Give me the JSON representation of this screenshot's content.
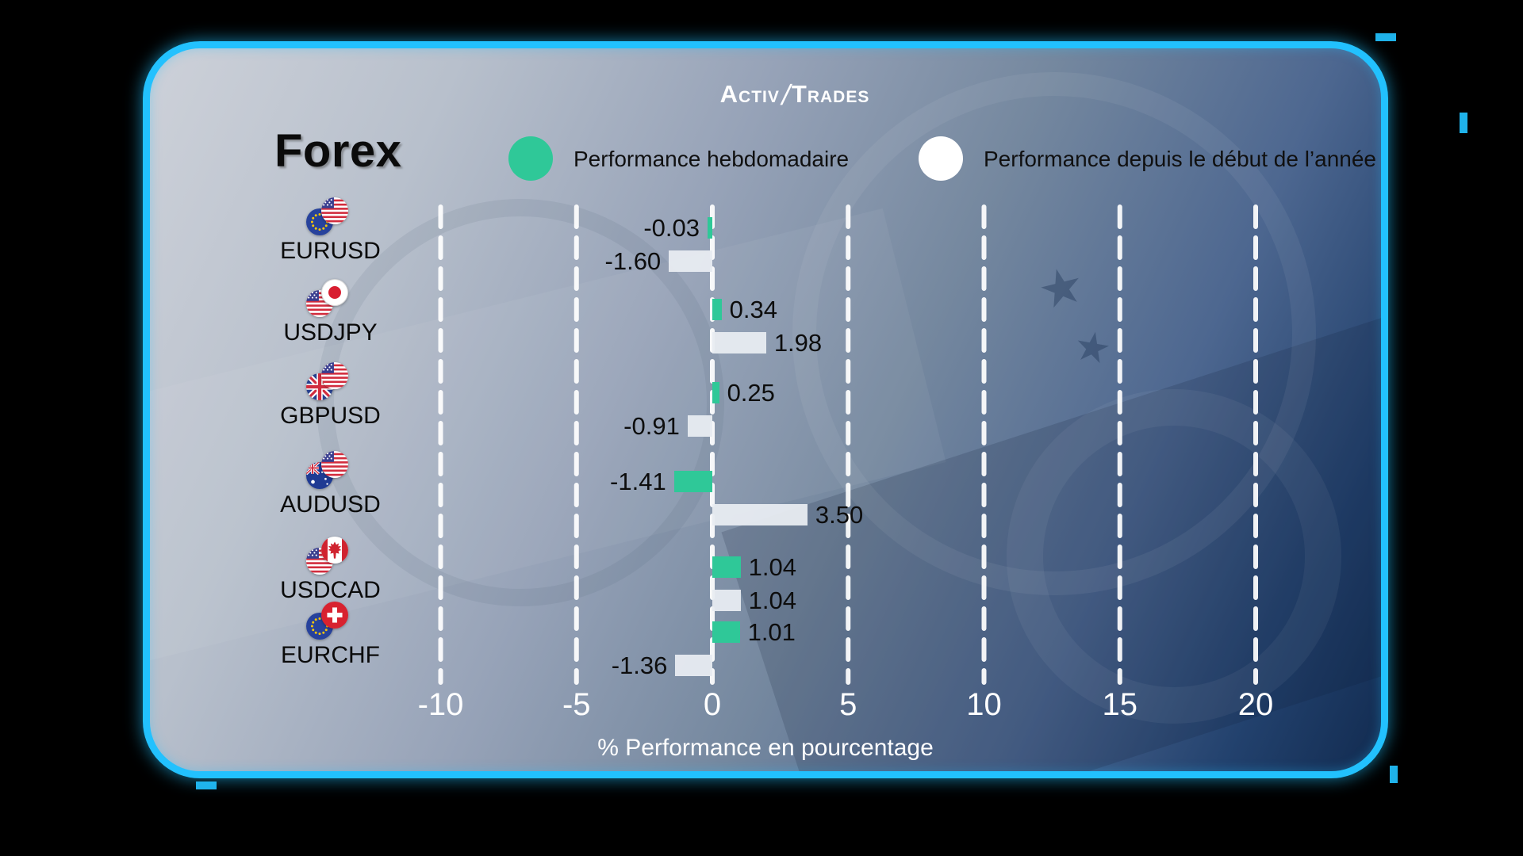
{
  "brand": {
    "logo_part1": "Activ",
    "logo_separator": "/",
    "logo_part2": "Trades"
  },
  "header": {
    "title": "Forex"
  },
  "legend": [
    {
      "label": "Performance hebdomadaire",
      "color": "#2fc898"
    },
    {
      "label": "Performance depuis le début de l’année",
      "color": "#ffffff"
    }
  ],
  "colors": {
    "weekly_bar": "#2fc898",
    "ytd_bar": "#e8ecf1",
    "frame": "#22c1fe",
    "grid": "#ffffff",
    "tick_text": "#ffffff",
    "value_text": "#0d0d0d"
  },
  "chart_data": {
    "type": "bar",
    "orientation": "horizontal",
    "title": "Forex",
    "xlabel": "% Performance en pourcentage",
    "x_ticks": [
      -10,
      -5,
      0,
      5,
      10,
      15,
      20
    ],
    "xlim": [
      -12.5,
      22.8
    ],
    "grid": "vertical-dashed-white",
    "legend_position": "top",
    "categories": [
      "EURUSD",
      "USDJPY",
      "GBPUSD",
      "AUDUSD",
      "USDCAD",
      "EURCHF"
    ],
    "flag_pairs": [
      [
        "eu",
        "us"
      ],
      [
        "us",
        "jp"
      ],
      [
        "gb",
        "us"
      ],
      [
        "au",
        "us"
      ],
      [
        "us",
        "ca"
      ],
      [
        "eu",
        "ch"
      ]
    ],
    "series": [
      {
        "name": "Performance hebdomadaire",
        "color": "#2fc898",
        "values": [
          -0.03,
          0.34,
          0.25,
          -1.41,
          1.04,
          1.01
        ],
        "value_labels": [
          "-0.03",
          "0.34",
          "0.25",
          "-1.41",
          "1.04",
          "1.01"
        ]
      },
      {
        "name": "Performance depuis le début de l’année",
        "color": "#e8ecf1",
        "values": [
          -1.6,
          1.98,
          -0.91,
          3.5,
          1.04,
          -1.36
        ],
        "value_labels": [
          "-1.60",
          "1.98",
          "-0.91",
          "3.50",
          "1.04",
          "-1.36"
        ]
      }
    ]
  }
}
